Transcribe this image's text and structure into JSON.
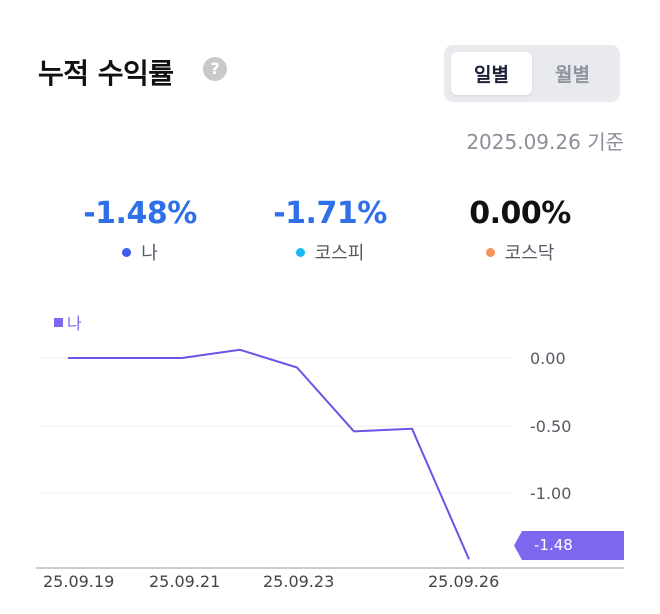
{
  "header": {
    "title": "누적 수익률",
    "help_icon": "question-circle-icon",
    "toggle": [
      {
        "label": "일별",
        "active": true
      },
      {
        "label": "월별",
        "active": false
      }
    ],
    "as_of": "2025.09.26 기준"
  },
  "stats": [
    {
      "value": "-1.48%",
      "label": "나",
      "color": "#2f6fe8",
      "dot_color": "#3f5cf0"
    },
    {
      "value": "-1.71%",
      "label": "코스피",
      "color": "#2f6fe8",
      "dot_color": "#1ab8f0"
    },
    {
      "value": "0.00%",
      "label": "코스닥",
      "color": "#111111",
      "dot_color": "#f4945a"
    }
  ],
  "chart": {
    "legend": "나",
    "y_labels": [
      "0.00",
      "-0.50",
      "-1.00"
    ],
    "x_labels": [
      "25.09.19",
      "25.09.21",
      "25.09.23",
      "25.09.26"
    ],
    "last_value_tag": "-1.48",
    "line_color": "#6a55e6"
  },
  "chart_data": {
    "type": "line",
    "title": "누적 수익률",
    "xlabel": "",
    "ylabel": "",
    "x": [
      "25.09.19",
      "25.09.21",
      "25.09.22",
      "25.09.23",
      "25.09.24",
      "25.09.25",
      "25.09.26"
    ],
    "series": [
      {
        "name": "나",
        "values": [
          0.0,
          0.0,
          0.06,
          -0.07,
          -0.54,
          -0.52,
          -1.48
        ]
      }
    ],
    "x_tick_labels": [
      "25.09.19",
      "25.09.21",
      "25.09.23",
      "25.09.26"
    ],
    "y_tick_labels": [
      "0.00",
      "-0.50",
      "-1.00"
    ],
    "ylim": [
      -1.48,
      0.1
    ],
    "grid": true,
    "legend_position": "top-left",
    "annotations": [
      "-1.48 (last value tag)"
    ]
  }
}
